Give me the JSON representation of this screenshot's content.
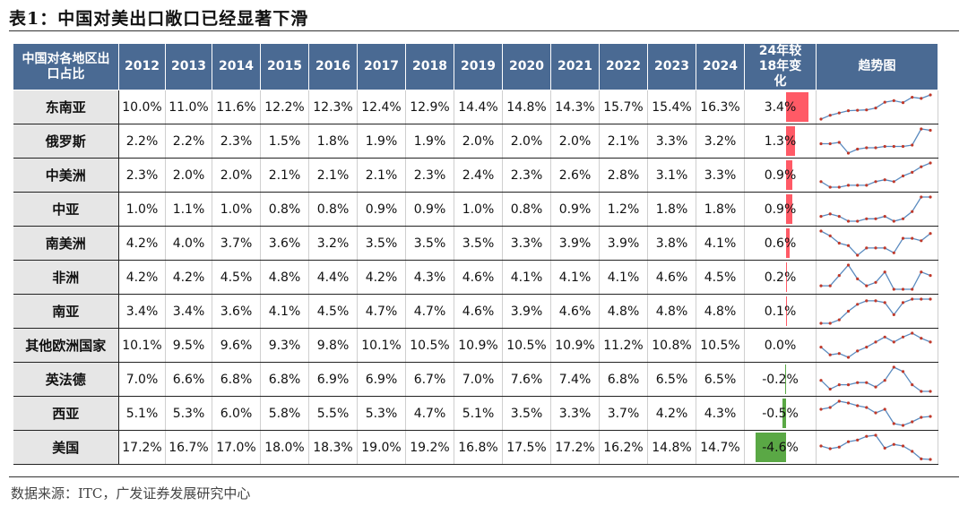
{
  "title": "表1：中国对美出口敞口已经显著下滑",
  "source": "数据来源：ITC，广发证券发展研究中心",
  "colors": {
    "header_bg": "#4a6a93",
    "positive_bar": "#ff5a66",
    "negative_bar": "#5aa845",
    "sparkline": "#5b8bbf",
    "marker": "#c0392b"
  },
  "chart_data": {
    "type": "table",
    "header_first": "中国对各地区出口占比",
    "years": [
      "2012",
      "2013",
      "2014",
      "2015",
      "2016",
      "2017",
      "2018",
      "2019",
      "2020",
      "2021",
      "2022",
      "2023",
      "2024"
    ],
    "header_delta": "24年较18年变化",
    "header_trend": "趋势图",
    "rows": [
      {
        "name": "东南亚",
        "values": [
          10.0,
          11.0,
          11.6,
          12.2,
          12.3,
          12.4,
          12.9,
          14.4,
          14.8,
          14.3,
          15.7,
          15.4,
          16.3
        ],
        "delta": 3.4
      },
      {
        "name": "俄罗斯",
        "values": [
          2.2,
          2.2,
          2.3,
          1.5,
          1.8,
          1.9,
          1.9,
          2.0,
          2.0,
          2.0,
          2.1,
          3.3,
          3.2
        ],
        "delta": 1.3
      },
      {
        "name": "中美洲",
        "values": [
          2.3,
          2.0,
          2.0,
          2.1,
          2.1,
          2.1,
          2.3,
          2.4,
          2.3,
          2.6,
          2.8,
          3.1,
          3.3
        ],
        "delta": 0.9
      },
      {
        "name": "中亚",
        "values": [
          1.0,
          1.1,
          1.0,
          0.8,
          0.8,
          0.9,
          0.9,
          1.0,
          0.8,
          0.9,
          1.2,
          1.8,
          1.8
        ],
        "delta": 0.9
      },
      {
        "name": "南美洲",
        "values": [
          4.2,
          4.0,
          3.7,
          3.6,
          3.2,
          3.5,
          3.5,
          3.5,
          3.3,
          3.9,
          3.9,
          3.8,
          4.1
        ],
        "delta": 0.6
      },
      {
        "name": "非洲",
        "values": [
          4.2,
          4.2,
          4.5,
          4.8,
          4.4,
          4.2,
          4.3,
          4.6,
          4.1,
          4.1,
          4.1,
          4.6,
          4.5
        ],
        "delta": 0.2
      },
      {
        "name": "南亚",
        "values": [
          3.4,
          3.4,
          3.6,
          4.1,
          4.5,
          4.7,
          4.7,
          4.6,
          3.9,
          4.6,
          4.8,
          4.8,
          4.8
        ],
        "delta": 0.1
      },
      {
        "name": "其他欧洲国家",
        "values": [
          10.1,
          9.5,
          9.6,
          9.3,
          9.8,
          10.1,
          10.5,
          10.9,
          10.5,
          10.9,
          11.2,
          10.8,
          10.5
        ],
        "delta": 0.0
      },
      {
        "name": "英法德",
        "values": [
          7.0,
          6.6,
          6.8,
          6.8,
          6.9,
          6.9,
          6.7,
          7.0,
          7.6,
          7.4,
          6.8,
          6.5,
          6.5
        ],
        "delta": -0.2
      },
      {
        "name": "西亚",
        "values": [
          5.1,
          5.3,
          6.0,
          5.8,
          5.5,
          5.3,
          4.7,
          5.1,
          3.5,
          3.3,
          3.7,
          4.2,
          4.3
        ],
        "delta": -0.5
      },
      {
        "name": "美国",
        "values": [
          17.2,
          16.7,
          17.0,
          18.0,
          18.3,
          19.0,
          19.2,
          16.8,
          17.5,
          17.2,
          16.2,
          14.8,
          14.7
        ],
        "delta": -4.6
      }
    ]
  }
}
